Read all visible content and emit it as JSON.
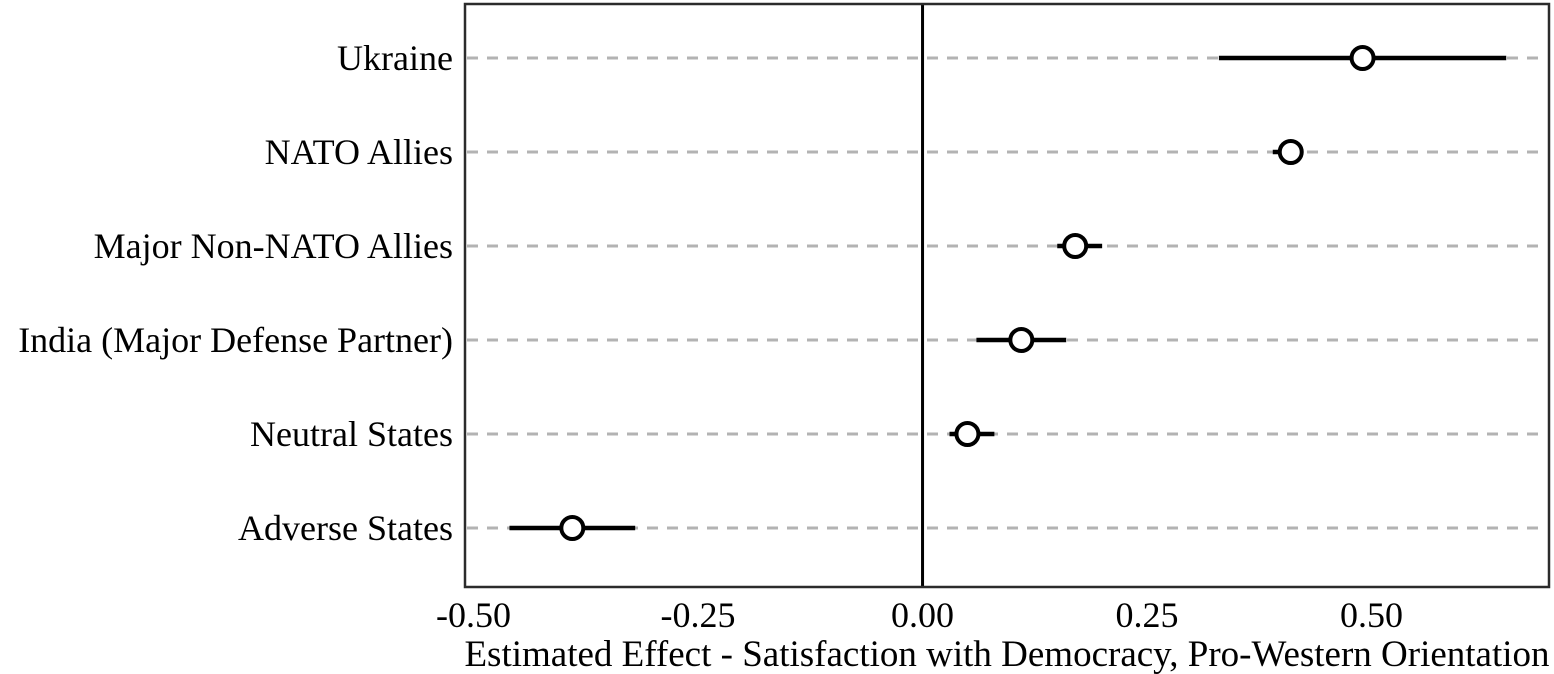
{
  "figure": {
    "background": "#ffffff",
    "panel_border_color": "#2b2b2b",
    "gridline_color": "#b3b3b3",
    "zero_line_color": "#000000",
    "ci_line_color": "#000000",
    "marker_stroke_color": "#000000",
    "marker_fill_color": "#ffffff"
  },
  "chart_data": {
    "type": "scatter",
    "subtype": "coefficient-dot-whisker-plot",
    "title": "",
    "xlabel": "Estimated Effect - Satisfaction with Democracy, Pro-Western Orientation",
    "ylabel": "",
    "categories": [
      "Ukraine",
      "NATO Allies",
      "Major Non-NATO Allies",
      "India (Major Defense Partner)",
      "Neutral States",
      "Adverse States"
    ],
    "series": [
      {
        "name": "estimate",
        "values": [
          0.49,
          0.41,
          0.17,
          0.11,
          0.05,
          -0.39
        ],
        "ci_low": [
          0.33,
          0.39,
          0.15,
          0.06,
          0.03,
          -0.46
        ],
        "ci_high": [
          0.65,
          0.42,
          0.2,
          0.16,
          0.08,
          -0.32
        ]
      }
    ],
    "xlim": [
      -0.5095,
      0.6976
    ],
    "x_ticks": [
      -0.5,
      -0.25,
      0,
      0.25,
      0.5
    ],
    "x_tick_labels": [
      "-0.50",
      "-0.25",
      "0.00",
      "0.25",
      "0.50"
    ],
    "grid": "horizontal-dashed",
    "legend": "none",
    "zero_reference_line": true
  }
}
